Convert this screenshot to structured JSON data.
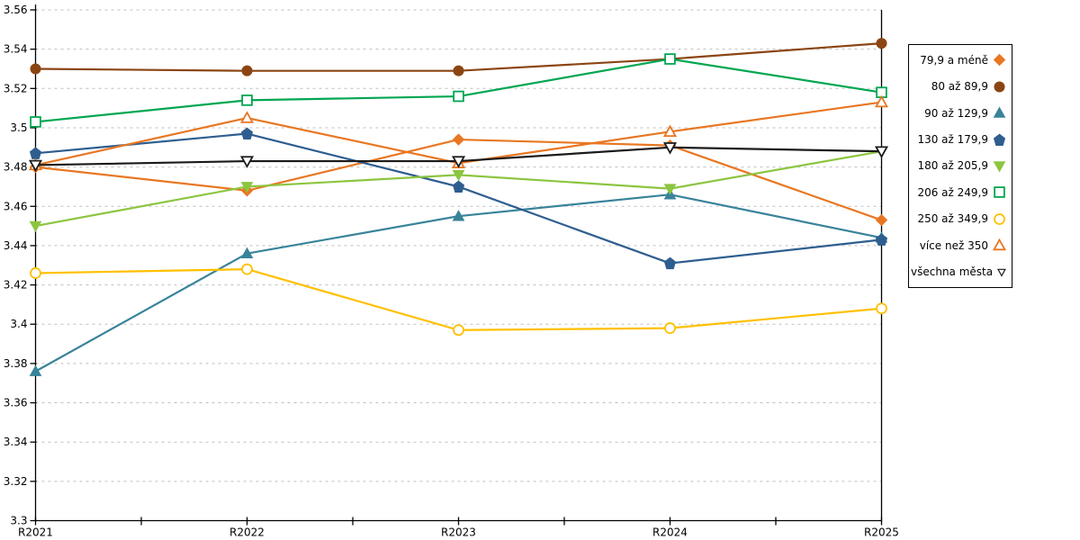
{
  "chart_data": {
    "type": "line",
    "categories": [
      "R2021",
      "R2022",
      "R2023",
      "R2024",
      "R2025"
    ],
    "series": [
      {
        "name": "79,9 a méně",
        "marker": "diamond",
        "style": "filled",
        "color": "#E87722",
        "values": [
          3.48,
          3.468,
          3.494,
          3.491,
          3.453
        ]
      },
      {
        "name": "80 až 89,9",
        "marker": "circle",
        "style": "filled",
        "color": "#8B4513",
        "values": [
          3.53,
          3.529,
          3.529,
          3.535,
          3.543
        ]
      },
      {
        "name": "90 až 129,9",
        "marker": "triangle-up",
        "style": "filled",
        "color": "#38839A",
        "values": [
          3.376,
          3.436,
          3.455,
          3.466,
          3.444
        ]
      },
      {
        "name": "130 až 179,9",
        "marker": "pentagon",
        "style": "filled",
        "color": "#2E5E8F",
        "values": [
          3.487,
          3.497,
          3.47,
          3.431,
          3.443
        ]
      },
      {
        "name": "180 až 205,9",
        "marker": "triangle-down",
        "style": "filled",
        "color": "#8CC540",
        "values": [
          3.45,
          3.47,
          3.476,
          3.469,
          3.488
        ]
      },
      {
        "name": "206 až 249,9",
        "marker": "square",
        "style": "open",
        "color": "#00A651",
        "values": [
          3.503,
          3.514,
          3.516,
          3.535,
          3.518
        ]
      },
      {
        "name": "250 až 349,9",
        "marker": "circle",
        "style": "open",
        "color": "#FFC000",
        "values": [
          3.426,
          3.428,
          3.397,
          3.398,
          3.408
        ]
      },
      {
        "name": "více než 350",
        "marker": "triangle-up",
        "style": "open",
        "color": "#E87722",
        "values": [
          3.481,
          3.505,
          3.482,
          3.498,
          3.513
        ]
      },
      {
        "name": "všechna města",
        "marker": "triangle-down",
        "style": "open",
        "color": "#1A1A1A",
        "values": [
          3.481,
          3.483,
          3.483,
          3.49,
          3.488
        ]
      }
    ],
    "ylim": [
      3.3,
      3.56
    ],
    "ytick_step": 0.02,
    "ytick_labels": [
      "3.3",
      "3.32",
      "3.34",
      "3.36",
      "3.38",
      "3.4",
      "3.42",
      "3.44",
      "3.46",
      "3.48",
      "3.5",
      "3.52",
      "3.54",
      "3.56"
    ],
    "xlabel": "",
    "ylabel": "",
    "title": "",
    "grid": "horizontal-dashed",
    "legend_position": "right"
  },
  "colors": {
    "background": "#FFFFFF",
    "axis": "#000000",
    "grid": "#BFBFBF",
    "legend_border": "#000000"
  }
}
